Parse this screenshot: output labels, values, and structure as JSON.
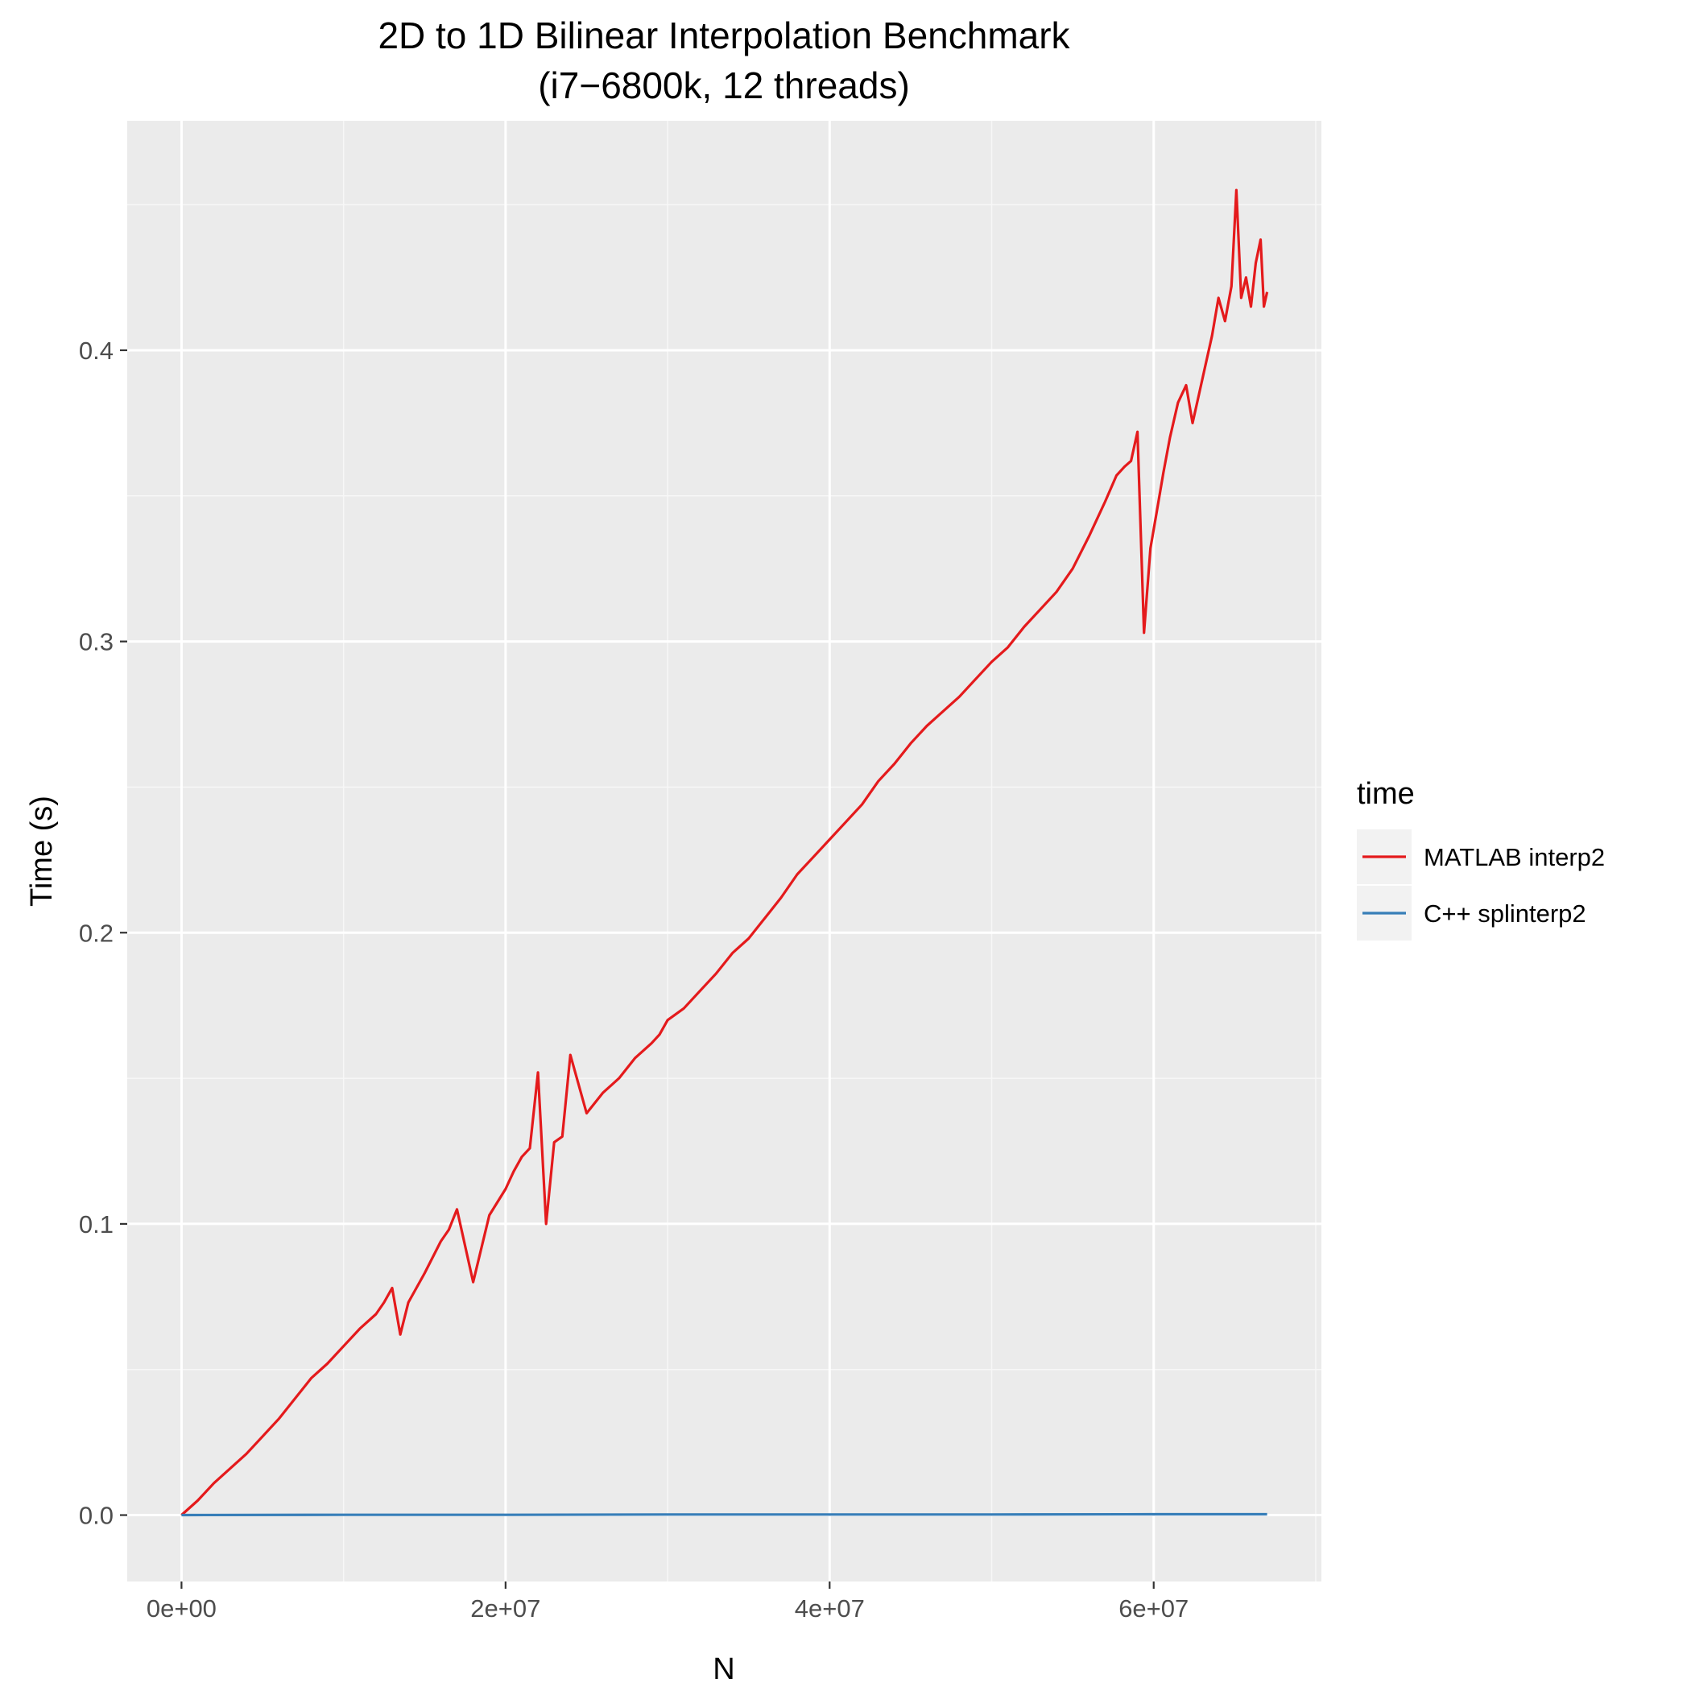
{
  "chart_data": {
    "type": "line",
    "title_line1": "2D to 1D Bilinear Interpolation Benchmark",
    "title_line2": "(i7−6800k, 12 threads)",
    "xlabel": "N",
    "ylabel": "Time (s)",
    "xlim": [
      -3350000,
      70350000
    ],
    "ylim": [
      -0.0228,
      0.4788
    ],
    "x_ticks": [
      0,
      20000000,
      40000000,
      60000000
    ],
    "x_tick_labels": [
      "0e+00",
      "2e+07",
      "4e+07",
      "6e+07"
    ],
    "x_minor_ticks": [
      10000000,
      30000000,
      50000000,
      70000000
    ],
    "y_ticks": [
      0,
      0.1,
      0.2,
      0.3,
      0.4
    ],
    "y_tick_labels": [
      "0.0",
      "0.1",
      "0.2",
      "0.3",
      "0.4"
    ],
    "y_minor_ticks": [
      0.05,
      0.15,
      0.25,
      0.35,
      0.45
    ],
    "grid": true,
    "legend": {
      "title": "time",
      "position": "right"
    },
    "series": [
      {
        "name": "MATLAB interp2",
        "color": "#e41a1c",
        "x": [
          0,
          1000000,
          2000000,
          3000000,
          4000000,
          5000000,
          6000000,
          7000000,
          8000000,
          9000000,
          10000000,
          11000000,
          12000000,
          12500000,
          13000000,
          13500000,
          14000000,
          15000000,
          16000000,
          16500000,
          17000000,
          18000000,
          19000000,
          20000000,
          20500000,
          21000000,
          21500000,
          22000000,
          22500000,
          23000000,
          23500000,
          24000000,
          25000000,
          26000000,
          27000000,
          28000000,
          29000000,
          29500000,
          30000000,
          31000000,
          32000000,
          33000000,
          34000000,
          35000000,
          36000000,
          37000000,
          38000000,
          39000000,
          40000000,
          41000000,
          42000000,
          43000000,
          44000000,
          45000000,
          46000000,
          47000000,
          48000000,
          49000000,
          50000000,
          51000000,
          52000000,
          53000000,
          54000000,
          55000000,
          56000000,
          57000000,
          57700000,
          58200000,
          58600000,
          59000000,
          59400000,
          59800000,
          60200000,
          60600000,
          61000000,
          61500000,
          62000000,
          62400000,
          62800000,
          63200000,
          63600000,
          64000000,
          64400000,
          64800000,
          65100000,
          65400000,
          65700000,
          66000000,
          66300000,
          66600000,
          66800000,
          67000000
        ],
        "values": [
          0.0,
          0.005,
          0.011,
          0.016,
          0.021,
          0.027,
          0.033,
          0.04,
          0.047,
          0.052,
          0.058,
          0.064,
          0.069,
          0.073,
          0.078,
          0.062,
          0.073,
          0.083,
          0.094,
          0.098,
          0.105,
          0.08,
          0.103,
          0.112,
          0.118,
          0.123,
          0.126,
          0.152,
          0.1,
          0.128,
          0.13,
          0.158,
          0.138,
          0.145,
          0.15,
          0.157,
          0.162,
          0.165,
          0.17,
          0.174,
          0.18,
          0.186,
          0.193,
          0.198,
          0.205,
          0.212,
          0.22,
          0.226,
          0.232,
          0.238,
          0.244,
          0.252,
          0.258,
          0.265,
          0.271,
          0.276,
          0.281,
          0.287,
          0.293,
          0.298,
          0.305,
          0.311,
          0.317,
          0.325,
          0.336,
          0.348,
          0.357,
          0.36,
          0.362,
          0.372,
          0.303,
          0.332,
          0.345,
          0.358,
          0.37,
          0.382,
          0.388,
          0.375,
          0.385,
          0.395,
          0.405,
          0.418,
          0.41,
          0.422,
          0.455,
          0.418,
          0.425,
          0.415,
          0.43,
          0.438,
          0.415,
          0.42
        ]
      },
      {
        "name": "C++ splinterp2",
        "color": "#377eb8",
        "x": [
          0,
          10000000,
          20000000,
          30000000,
          40000000,
          50000000,
          60000000,
          67000000
        ],
        "values": [
          0.0,
          0.0001,
          0.0001,
          0.0002,
          0.0002,
          0.0002,
          0.0003,
          0.0003
        ]
      }
    ]
  }
}
